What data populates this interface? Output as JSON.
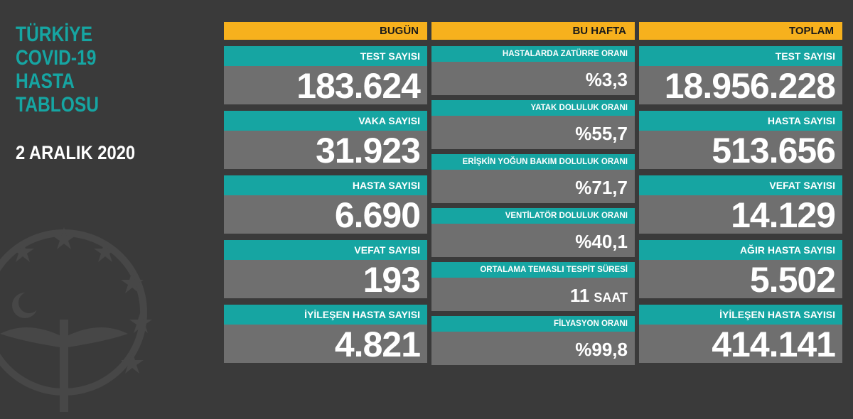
{
  "header": {
    "title_lines": [
      "TÜRKİYE",
      "COVID-19",
      "HASTA",
      "TABLOSU"
    ],
    "date": "2 ARALIK 2020"
  },
  "today": {
    "heading": "BUGÜN",
    "cards": [
      {
        "label": "TEST SAYISI",
        "value": "183.624"
      },
      {
        "label": "VAKA SAYISI",
        "value": "31.923"
      },
      {
        "label": "HASTA SAYISI",
        "value": "6.690"
      },
      {
        "label": "VEFAT SAYISI",
        "value": "193"
      },
      {
        "label": "İYİLEŞEN HASTA SAYISI",
        "value": "4.821"
      }
    ]
  },
  "week": {
    "heading": "BU HAFTA",
    "cards": [
      {
        "label": "HASTALARDA ZATÜRRE ORANI",
        "value": "%3,3"
      },
      {
        "label": "YATAK DOLULUK ORANI",
        "value": "%55,7"
      },
      {
        "label": "ERİŞKİN YOĞUN BAKIM DOLULUK ORANI",
        "value": "%71,7"
      },
      {
        "label": "VENTİLATÖR DOLULUK ORANI",
        "value": "%40,1"
      },
      {
        "label": "ORTALAMA TEMASLI TESPİT SÜRESİ",
        "value": "11",
        "unit": "SAAT"
      },
      {
        "label": "FİLYASYON ORANI",
        "value": "%99,8"
      }
    ]
  },
  "total": {
    "heading": "TOPLAM",
    "cards": [
      {
        "label": "TEST SAYISI",
        "value": "18.956.228"
      },
      {
        "label": "HASTA SAYISI",
        "value": "513.656"
      },
      {
        "label": "VEFAT SAYISI",
        "value": "14.129"
      },
      {
        "label": "AĞIR HASTA SAYISI",
        "value": "5.502"
      },
      {
        "label": "İYİLEŞEN HASTA SAYISI",
        "value": "414.141"
      }
    ]
  },
  "colors": {
    "background": "#3a3a3a",
    "accent_teal": "#16a5a2",
    "header_yellow": "#f7b11d",
    "card_gray": "#6f6f6f"
  },
  "icons": {
    "emblem": "ministry-of-health-emblem-icon"
  }
}
